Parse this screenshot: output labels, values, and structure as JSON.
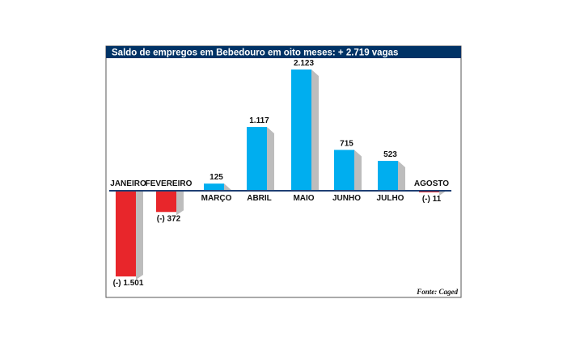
{
  "chart_data": {
    "type": "bar",
    "title": "Saldo de empregos em Bebedouro em oito meses: + 2.719 vagas",
    "categories": [
      "JANEIRO",
      "FEVEREIRO",
      "MARÇO",
      "ABRIL",
      "MAIO",
      "JUNHO",
      "JULHO",
      "AGOSTO"
    ],
    "values": [
      -1501,
      -372,
      125,
      1117,
      2123,
      715,
      523,
      -11
    ],
    "value_labels": [
      "(-) 1.501",
      "(-) 372",
      "125",
      "1.117",
      "2.123",
      "715",
      "523",
      "(-) 11"
    ],
    "source": "Fonte: Caged",
    "grid": false,
    "colors": {
      "positive": "#00aeef",
      "negative": "#e8262b",
      "shadow": "#bdbdbd",
      "title_bar": "#003366",
      "baseline": "#1f3f73"
    }
  }
}
